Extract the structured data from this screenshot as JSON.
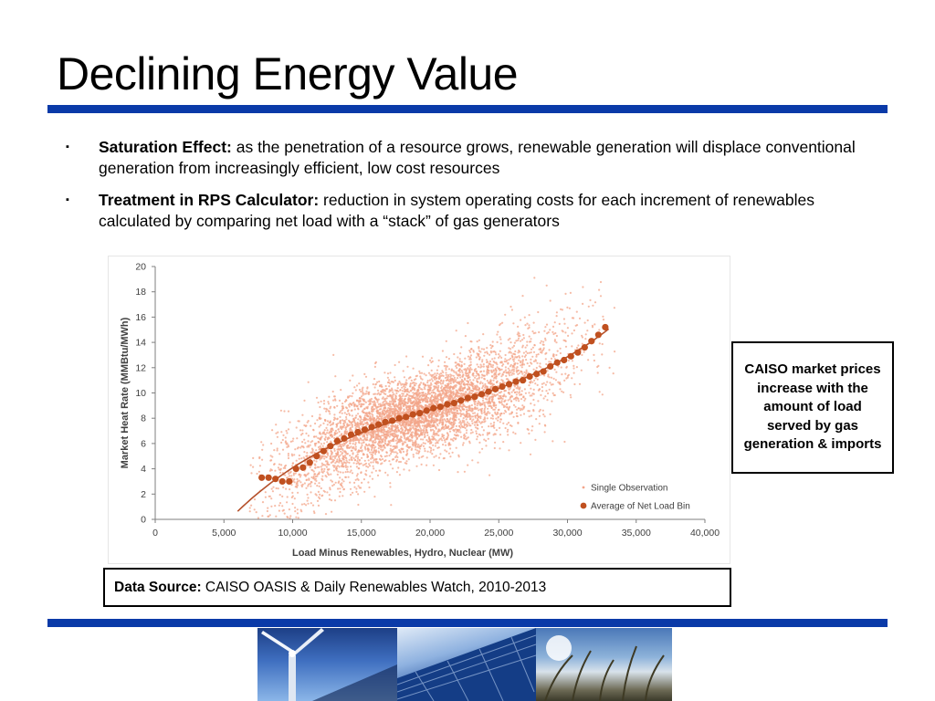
{
  "slide": {
    "title": "Declining Energy Value",
    "bullets": [
      {
        "marker": "▪",
        "bold": "Saturation Effect:",
        "text": " as the penetration of a resource grows, renewable generation will displace conventional generation from increasingly efficient, low cost resources"
      },
      {
        "marker": "▪",
        "bold": "Treatment in RPS Calculator:",
        "text": " reduction in system operating costs for each increment of renewables calculated by comparing net load with a “stack” of gas generators"
      }
    ],
    "callout": "CAISO market prices increase with the amount of load served by gas generation & imports",
    "source": {
      "label": "Data Source:",
      "text": " CAISO OASIS & Daily Renewables Watch, 2010-2013"
    },
    "rule_color": "#0a3aa8",
    "photos": [
      {
        "icon": "wind-turbine-photo"
      },
      {
        "icon": "solar-panel-photo"
      },
      {
        "icon": "grass-sky-photo"
      }
    ]
  },
  "chart_data": {
    "type": "scatter",
    "title": "",
    "xlabel": "Load Minus Renewables, Hydro, Nuclear (MW)",
    "ylabel": "Market Heat Rate (MMBtu/MWh)",
    "xlim": [
      0,
      40000
    ],
    "ylim": [
      0,
      20
    ],
    "xticks": [
      0,
      5000,
      10000,
      15000,
      20000,
      25000,
      30000,
      35000,
      40000
    ],
    "xtick_labels": [
      "0",
      "5,000",
      "10,000",
      "15,000",
      "20,000",
      "25,000",
      "30,000",
      "35,000",
      "40,000"
    ],
    "yticks": [
      0,
      2,
      4,
      6,
      8,
      10,
      12,
      14,
      16,
      18,
      20
    ],
    "yticks_labels": [
      "0",
      "2",
      "4",
      "6",
      "8",
      "10",
      "12",
      "14",
      "16",
      "18",
      "20"
    ],
    "grid": false,
    "legend": {
      "position": "bottom-right",
      "entries": [
        "Single Observation",
        "Average of Net Load Bin"
      ]
    },
    "colors": {
      "single": "#f3a58a",
      "average": "#c0501f",
      "trend": "#b5502a",
      "axis": "#7f7f7f",
      "text": "#404040"
    },
    "series": [
      {
        "name": "Average of Net Load Bin",
        "x": [
          7750,
          8250,
          8750,
          9250,
          9750,
          10250,
          10750,
          11250,
          11750,
          12250,
          12750,
          13250,
          13750,
          14250,
          14750,
          15250,
          15750,
          16250,
          16750,
          17250,
          17750,
          18250,
          18750,
          19250,
          19750,
          20250,
          20750,
          21250,
          21750,
          22250,
          22750,
          23250,
          23750,
          24250,
          24750,
          25250,
          25750,
          26250,
          26750,
          27250,
          27750,
          28250,
          28750,
          29250,
          29750,
          30250,
          30750,
          31250,
          31750,
          32250,
          32750
        ],
        "y": [
          3.3,
          3.3,
          3.2,
          3.0,
          3.0,
          4.0,
          4.1,
          4.5,
          5.0,
          5.4,
          5.8,
          6.2,
          6.4,
          6.7,
          6.9,
          7.1,
          7.3,
          7.5,
          7.7,
          7.8,
          8.0,
          8.1,
          8.3,
          8.4,
          8.6,
          8.8,
          8.9,
          9.1,
          9.2,
          9.4,
          9.6,
          9.7,
          9.9,
          10.1,
          10.3,
          10.5,
          10.7,
          10.9,
          11.0,
          11.3,
          11.5,
          11.7,
          12.1,
          12.4,
          12.6,
          12.9,
          13.2,
          13.6,
          14.1,
          14.6,
          15.2
        ]
      },
      {
        "name": "Single Observation",
        "description_level": "approx",
        "cloud_center_trend": [
          [
            7500,
            2.2
          ],
          [
            10000,
            3.6
          ],
          [
            12500,
            5.6
          ],
          [
            15000,
            7.0
          ],
          [
            17500,
            7.9
          ],
          [
            20000,
            8.6
          ],
          [
            22500,
            9.5
          ],
          [
            25000,
            10.5
          ],
          [
            27500,
            11.6
          ],
          [
            30000,
            13.0
          ],
          [
            32500,
            15.2
          ]
        ]
      }
    ],
    "trendline": {
      "type": "polynomial",
      "x_start": 6000,
      "x_end": 33000
    }
  }
}
